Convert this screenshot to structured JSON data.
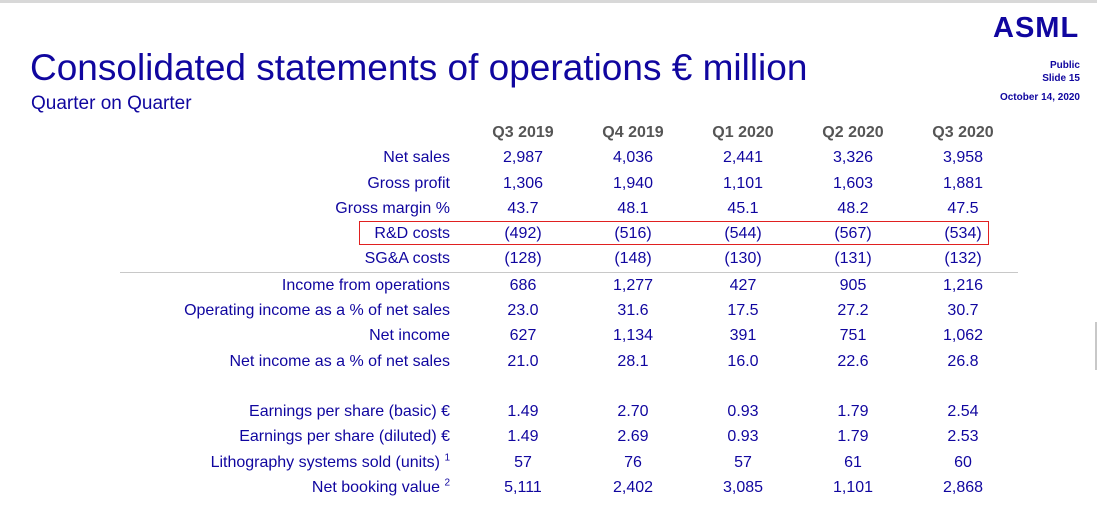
{
  "header": {
    "title": "Consolidated statements of operations € million",
    "subtitle": "Quarter on Quarter",
    "logo": "ASML",
    "classification": "Public",
    "slide": "Slide 15",
    "date": "October 14, 2020"
  },
  "table": {
    "columns": [
      "Q3 2019",
      "Q4 2019",
      "Q1 2020",
      "Q2 2020",
      "Q3 2020"
    ],
    "rows": [
      {
        "label": "Net sales",
        "values": [
          "2,987",
          "4,036",
          "2,441",
          "3,326",
          "3,958"
        ]
      },
      {
        "label": "Gross profit",
        "values": [
          "1,306",
          "1,940",
          "1,101",
          "1,603",
          "1,881"
        ]
      },
      {
        "label": "Gross margin %",
        "values": [
          "43.7",
          "48.1",
          "45.1",
          "48.2",
          "47.5"
        ]
      },
      {
        "label": "R&D costs",
        "values": [
          "(492)",
          "(516)",
          "(544)",
          "(567)",
          "(534)"
        ]
      },
      {
        "label": "SG&A costs",
        "values": [
          "(128)",
          "(148)",
          "(130)",
          "(131)",
          "(132)"
        ]
      },
      {
        "label": "Income from operations",
        "values": [
          "686",
          "1,277",
          "427",
          "905",
          "1,216"
        ]
      },
      {
        "label": "Operating income as a % of net sales",
        "values": [
          "23.0",
          "31.6",
          "17.5",
          "27.2",
          "30.7"
        ]
      },
      {
        "label": "Net income",
        "values": [
          "627",
          "1,134",
          "391",
          "751",
          "1,062"
        ]
      },
      {
        "label": "Net income as a % of net sales",
        "values": [
          "21.0",
          "28.1",
          "16.0",
          "22.6",
          "26.8"
        ]
      }
    ],
    "rows2": [
      {
        "label": "Earnings per share (basic) €",
        "sup": "",
        "values": [
          "1.49",
          "2.70",
          "0.93",
          "1.79",
          "2.54"
        ]
      },
      {
        "label": "Earnings per share (diluted) €",
        "sup": "",
        "values": [
          "1.49",
          "2.69",
          "0.93",
          "1.79",
          "2.53"
        ]
      },
      {
        "label": "Lithography systems sold (units) ",
        "sup": "1",
        "values": [
          "57",
          "76",
          "57",
          "61",
          "60"
        ]
      },
      {
        "label": "Net booking value ",
        "sup": "2",
        "values": [
          "5,111",
          "2,402",
          "3,085",
          "1,101",
          "2,868"
        ]
      }
    ]
  },
  "colors": {
    "brand": "#10069f",
    "highlight": "#e02020",
    "header_text": "#555555"
  }
}
